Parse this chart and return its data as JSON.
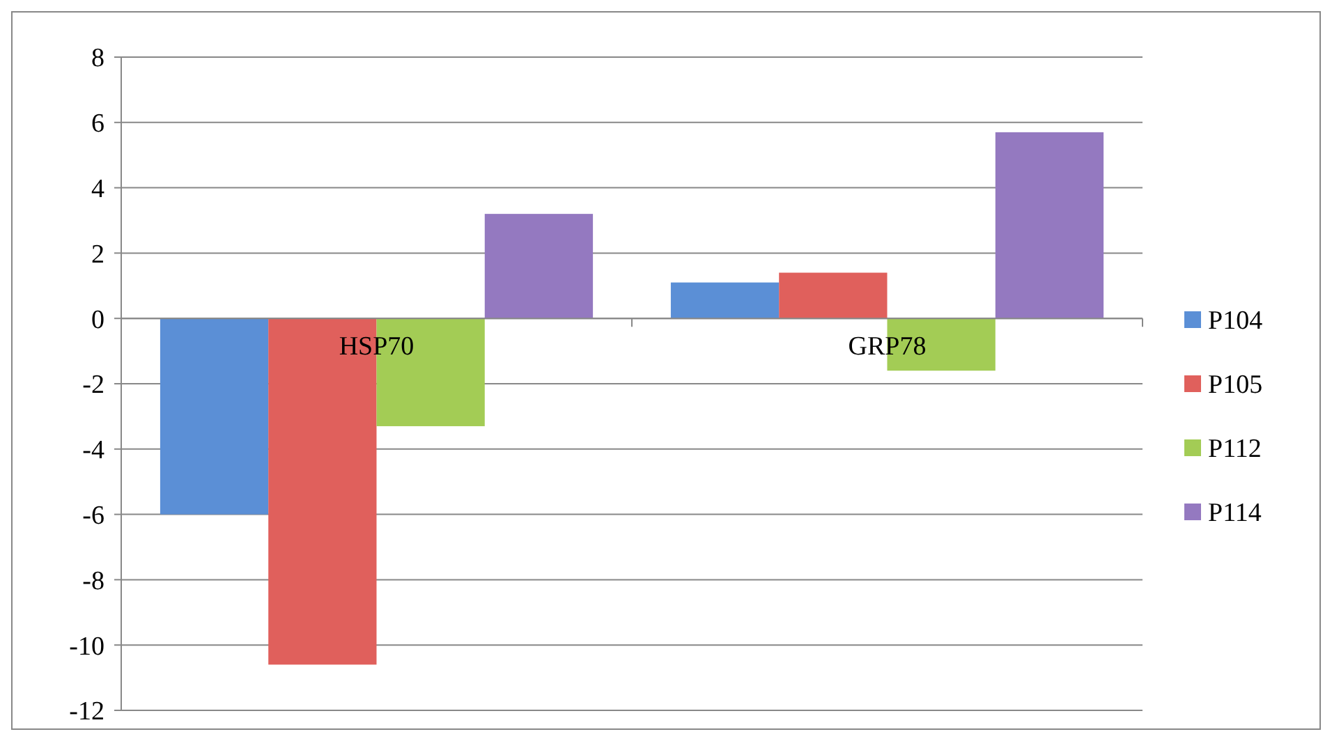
{
  "chart_data": {
    "type": "bar",
    "categories": [
      "HSP70",
      "GRP78"
    ],
    "series": [
      {
        "name": "P104",
        "color": "#5b8fd6",
        "values": [
          -6.0,
          1.1
        ]
      },
      {
        "name": "P105",
        "color": "#e0605c",
        "values": [
          -10.6,
          1.4
        ]
      },
      {
        "name": "P112",
        "color": "#a3cc55",
        "values": [
          -3.3,
          -1.6
        ]
      },
      {
        "name": "P114",
        "color": "#9479c0",
        "values": [
          3.2,
          5.7
        ]
      }
    ],
    "ylim": [
      -12,
      8
    ],
    "yticks": [
      -12,
      -10,
      -8,
      -6,
      -4,
      -2,
      0,
      2,
      4,
      6,
      8
    ],
    "grid": "y",
    "legend": "right"
  }
}
